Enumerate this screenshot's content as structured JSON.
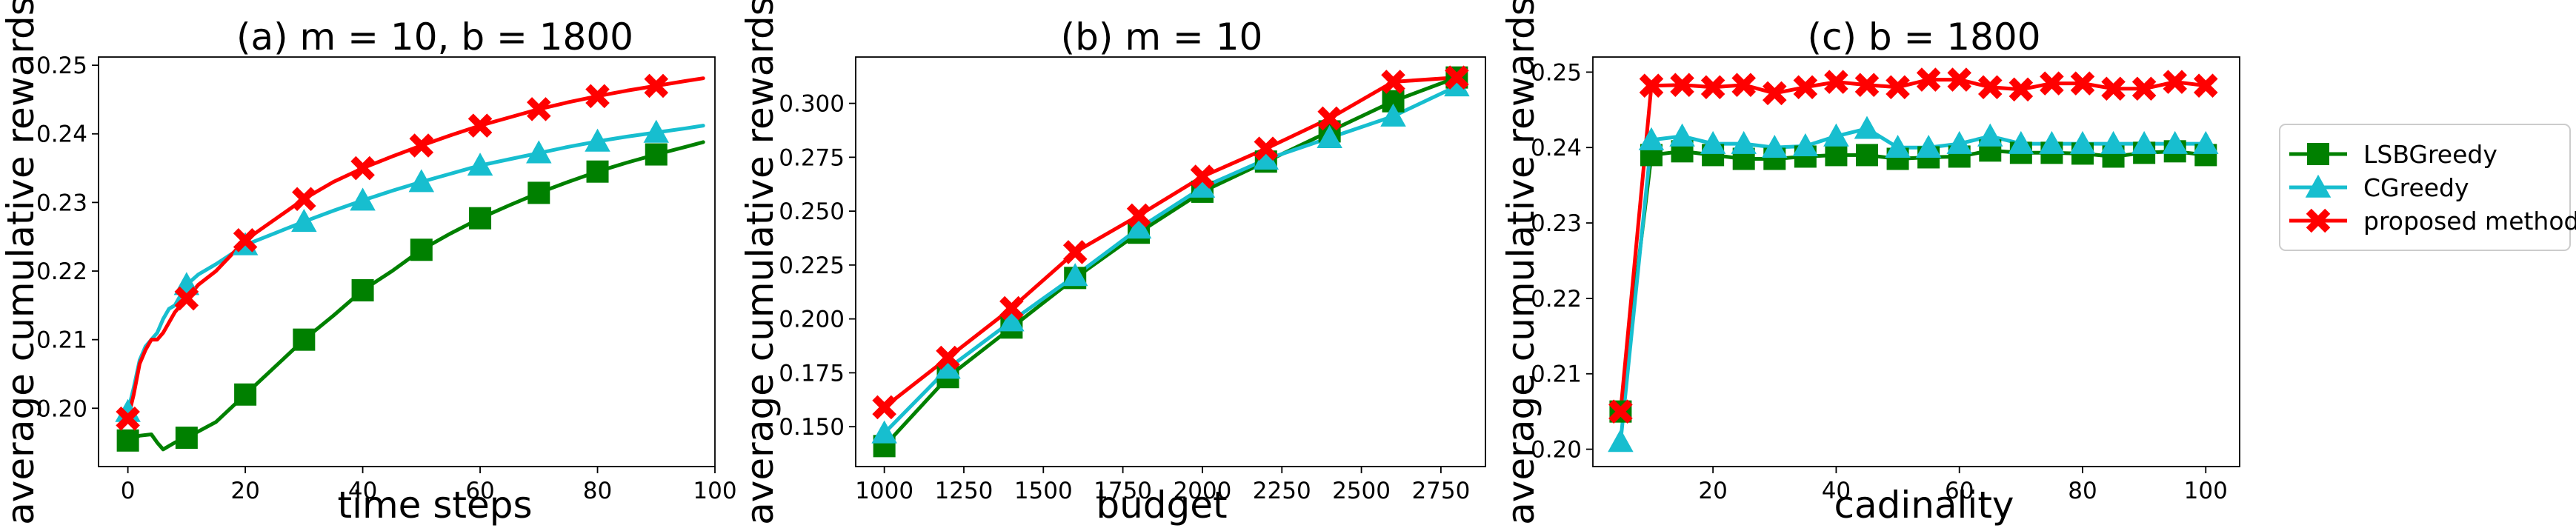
{
  "colors": {
    "lsb": "#008000",
    "cg": "#17becf",
    "prop": "#ff0000"
  },
  "legend": {
    "placement": "right",
    "entries": [
      {
        "name": "LSBGreedy",
        "color": "#008000",
        "marker": "square"
      },
      {
        "name": "CGreedy",
        "color": "#17becf",
        "marker": "triangle"
      },
      {
        "name": "proposed method",
        "color": "#ff0000",
        "marker": "x"
      }
    ]
  },
  "chart_data": [
    {
      "type": "line",
      "title": "(a) m = 10, b = 1800",
      "xlabel": "time steps",
      "ylabel": "average cumulative rewards",
      "xlim": [
        -5,
        100
      ],
      "ylim": [
        0.1915,
        0.2512
      ],
      "xticks": [
        0,
        20,
        40,
        60,
        80,
        100
      ],
      "xtick_labels": [
        "0",
        "20",
        "40",
        "60",
        "80",
        "100"
      ],
      "yticks": [
        0.2,
        0.21,
        0.22,
        0.23,
        0.24,
        0.25
      ],
      "ytick_labels": [
        "0.20",
        "0.21",
        "0.22",
        "0.23",
        "0.24",
        "0.25"
      ],
      "series": [
        {
          "name": "LSBGreedy",
          "color": "#008000",
          "marker": "square",
          "x": [
            0,
            2,
            4,
            5,
            6,
            8,
            10,
            15,
            20,
            25,
            30,
            35,
            40,
            45,
            50,
            55,
            60,
            65,
            70,
            75,
            80,
            85,
            90,
            95,
            98
          ],
          "y": [
            0.1953,
            0.196,
            0.1962,
            0.195,
            0.194,
            0.195,
            0.1957,
            0.198,
            0.202,
            0.206,
            0.21,
            0.2135,
            0.2172,
            0.22,
            0.2231,
            0.2255,
            0.2277,
            0.2296,
            0.2314,
            0.233,
            0.2345,
            0.2358,
            0.237,
            0.2381,
            0.2388
          ],
          "marker_x": [
            0,
            10,
            20,
            30,
            40,
            50,
            60,
            70,
            80,
            90
          ],
          "marker_y": [
            0.1953,
            0.1957,
            0.202,
            0.21,
            0.2172,
            0.2231,
            0.2277,
            0.2314,
            0.2345,
            0.237
          ]
        },
        {
          "name": "CGreedy",
          "color": "#17becf",
          "marker": "triangle",
          "x": [
            0,
            1,
            2,
            3,
            4,
            5,
            6,
            7,
            8,
            9,
            10,
            12,
            15,
            20,
            25,
            30,
            35,
            40,
            45,
            50,
            55,
            60,
            65,
            70,
            75,
            80,
            85,
            90,
            95,
            98
          ],
          "y": [
            0.1995,
            0.203,
            0.207,
            0.209,
            0.21,
            0.211,
            0.213,
            0.2145,
            0.215,
            0.2165,
            0.218,
            0.2195,
            0.221,
            0.2238,
            0.2255,
            0.2272,
            0.2288,
            0.2303,
            0.2317,
            0.233,
            0.2342,
            0.2354,
            0.2363,
            0.2372,
            0.2381,
            0.2389,
            0.2396,
            0.2402,
            0.2408,
            0.2412
          ],
          "marker_x": [
            0,
            10,
            20,
            30,
            40,
            50,
            60,
            70,
            80,
            90
          ],
          "marker_y": [
            0.1995,
            0.218,
            0.2238,
            0.2272,
            0.2303,
            0.233,
            0.2354,
            0.2372,
            0.2389,
            0.2402
          ]
        },
        {
          "name": "proposed method",
          "color": "#ff0000",
          "marker": "x",
          "x": [
            0,
            1,
            2,
            3,
            4,
            5,
            6,
            7,
            8,
            9,
            10,
            12,
            15,
            20,
            25,
            30,
            35,
            40,
            45,
            50,
            55,
            60,
            65,
            70,
            75,
            80,
            85,
            90,
            95,
            98
          ],
          "y": [
            0.1985,
            0.202,
            0.2065,
            0.2085,
            0.21,
            0.21,
            0.211,
            0.2125,
            0.214,
            0.215,
            0.216,
            0.218,
            0.22,
            0.2245,
            0.2275,
            0.2305,
            0.233,
            0.235,
            0.2367,
            0.2383,
            0.2398,
            0.2412,
            0.2424,
            0.2436,
            0.2446,
            0.2455,
            0.2463,
            0.247,
            0.2477,
            0.2481
          ],
          "marker_x": [
            0,
            10,
            20,
            30,
            40,
            50,
            60,
            70,
            80,
            90
          ],
          "marker_y": [
            0.1985,
            0.216,
            0.2245,
            0.2305,
            0.235,
            0.2383,
            0.2412,
            0.2436,
            0.2455,
            0.247
          ]
        }
      ]
    },
    {
      "type": "line",
      "title": "(b) m = 10",
      "xlabel": "budget",
      "ylabel": "average cumulative rewards",
      "xlim": [
        910,
        2890
      ],
      "ylim": [
        0.1315,
        0.3215
      ],
      "xticks": [
        1000,
        1250,
        1500,
        1750,
        2000,
        2250,
        2500,
        2750
      ],
      "xtick_labels": [
        "1000",
        "1250",
        "1500",
        "1750",
        "2000",
        "2250",
        "2500",
        "2750"
      ],
      "yticks": [
        0.15,
        0.175,
        0.2,
        0.225,
        0.25,
        0.275,
        0.3
      ],
      "ytick_labels": [
        "0.150",
        "0.175",
        "0.200",
        "0.225",
        "0.250",
        "0.275",
        "0.300"
      ],
      "series": [
        {
          "name": "LSBGreedy",
          "color": "#008000",
          "marker": "square",
          "x": [
            1000,
            1200,
            1400,
            1600,
            1800,
            2000,
            2200,
            2400,
            2600,
            2800
          ],
          "y": [
            0.141,
            0.173,
            0.196,
            0.219,
            0.24,
            0.259,
            0.273,
            0.287,
            0.301,
            0.312
          ],
          "marker_x": [
            1000,
            1200,
            1400,
            1600,
            1800,
            2000,
            2200,
            2400,
            2600,
            2800
          ],
          "marker_y": [
            0.141,
            0.173,
            0.196,
            0.219,
            0.24,
            0.259,
            0.273,
            0.287,
            0.301,
            0.312
          ]
        },
        {
          "name": "CGreedy",
          "color": "#17becf",
          "marker": "triangle",
          "x": [
            1000,
            1200,
            1400,
            1600,
            1800,
            2000,
            2200,
            2400,
            2600,
            2800
          ],
          "y": [
            0.147,
            0.177,
            0.199,
            0.22,
            0.242,
            0.261,
            0.274,
            0.284,
            0.294,
            0.308
          ],
          "marker_x": [
            1000,
            1200,
            1400,
            1600,
            1800,
            2000,
            2200,
            2400,
            2600,
            2800
          ],
          "marker_y": [
            0.147,
            0.177,
            0.199,
            0.22,
            0.242,
            0.261,
            0.274,
            0.284,
            0.294,
            0.308
          ]
        },
        {
          "name": "proposed method",
          "color": "#ff0000",
          "marker": "x",
          "x": [
            1000,
            1200,
            1400,
            1600,
            1800,
            2000,
            2200,
            2400,
            2600,
            2800
          ],
          "y": [
            0.159,
            0.182,
            0.205,
            0.231,
            0.248,
            0.266,
            0.279,
            0.293,
            0.31,
            0.312
          ],
          "marker_x": [
            1000,
            1200,
            1400,
            1600,
            1800,
            2000,
            2200,
            2400,
            2600,
            2800
          ],
          "marker_y": [
            0.159,
            0.182,
            0.205,
            0.231,
            0.248,
            0.266,
            0.279,
            0.293,
            0.31,
            0.312
          ]
        }
      ]
    },
    {
      "type": "line",
      "title": "(c) b = 1800",
      "xlabel": "cadinality",
      "ylabel": "average cumulative rewards",
      "xlim": [
        0.5,
        105.5
      ],
      "ylim": [
        0.1977,
        0.252
      ],
      "xticks": [
        20,
        40,
        60,
        80,
        100
      ],
      "xtick_labels": [
        "20",
        "40",
        "60",
        "80",
        "100"
      ],
      "yticks": [
        0.2,
        0.21,
        0.22,
        0.23,
        0.24,
        0.25
      ],
      "ytick_labels": [
        "0.20",
        "0.21",
        "0.22",
        "0.23",
        "0.24",
        "0.25"
      ],
      "series": [
        {
          "name": "LSBGreedy",
          "color": "#008000",
          "marker": "square",
          "x": [
            5,
            10,
            15,
            20,
            25,
            30,
            35,
            40,
            45,
            50,
            55,
            60,
            65,
            70,
            75,
            80,
            85,
            90,
            95,
            100
          ],
          "y": [
            0.205,
            0.239,
            0.2395,
            0.239,
            0.2385,
            0.2385,
            0.2388,
            0.239,
            0.239,
            0.2385,
            0.2387,
            0.2388,
            0.2396,
            0.2393,
            0.2393,
            0.2392,
            0.2388,
            0.2393,
            0.2395,
            0.239
          ],
          "marker_x": [
            5,
            10,
            15,
            20,
            25,
            30,
            35,
            40,
            45,
            50,
            55,
            60,
            65,
            70,
            75,
            80,
            85,
            90,
            95,
            100
          ],
          "marker_y": [
            0.205,
            0.239,
            0.2395,
            0.239,
            0.2385,
            0.2385,
            0.2388,
            0.239,
            0.239,
            0.2385,
            0.2387,
            0.2388,
            0.2396,
            0.2393,
            0.2393,
            0.2392,
            0.2388,
            0.2393,
            0.2395,
            0.239
          ]
        },
        {
          "name": "CGreedy",
          "color": "#17becf",
          "marker": "triangle",
          "x": [
            5,
            10,
            15,
            20,
            25,
            30,
            35,
            40,
            45,
            50,
            55,
            60,
            65,
            70,
            75,
            80,
            85,
            90,
            95,
            100
          ],
          "y": [
            0.201,
            0.241,
            0.2415,
            0.2405,
            0.2405,
            0.24,
            0.2402,
            0.2415,
            0.2425,
            0.24,
            0.24,
            0.2405,
            0.2415,
            0.2405,
            0.2405,
            0.2405,
            0.2405,
            0.2405,
            0.2405,
            0.2405
          ],
          "marker_x": [
            5,
            10,
            15,
            20,
            25,
            30,
            35,
            40,
            45,
            50,
            55,
            60,
            65,
            70,
            75,
            80,
            85,
            90,
            95,
            100
          ],
          "marker_y": [
            0.201,
            0.241,
            0.2415,
            0.2405,
            0.2405,
            0.24,
            0.2402,
            0.2415,
            0.2425,
            0.24,
            0.24,
            0.2405,
            0.2415,
            0.2405,
            0.2405,
            0.2405,
            0.2405,
            0.2405,
            0.2405,
            0.2405
          ]
        },
        {
          "name": "proposed method",
          "color": "#ff0000",
          "marker": "x",
          "x": [
            5,
            10,
            15,
            20,
            25,
            30,
            35,
            40,
            45,
            50,
            55,
            60,
            65,
            70,
            75,
            80,
            85,
            90,
            95,
            100
          ],
          "y": [
            0.205,
            0.2482,
            0.2483,
            0.248,
            0.2483,
            0.2472,
            0.248,
            0.2487,
            0.2483,
            0.248,
            0.249,
            0.249,
            0.248,
            0.2477,
            0.2485,
            0.2485,
            0.2478,
            0.2478,
            0.2487,
            0.2482
          ],
          "marker_x": [
            5,
            10,
            15,
            20,
            25,
            30,
            35,
            40,
            45,
            50,
            55,
            60,
            65,
            70,
            75,
            80,
            85,
            90,
            95,
            100
          ],
          "marker_y": [
            0.205,
            0.2482,
            0.2483,
            0.248,
            0.2483,
            0.2472,
            0.248,
            0.2487,
            0.2483,
            0.248,
            0.249,
            0.249,
            0.248,
            0.2477,
            0.2485,
            0.2485,
            0.2478,
            0.2478,
            0.2487,
            0.2482
          ]
        }
      ]
    }
  ]
}
